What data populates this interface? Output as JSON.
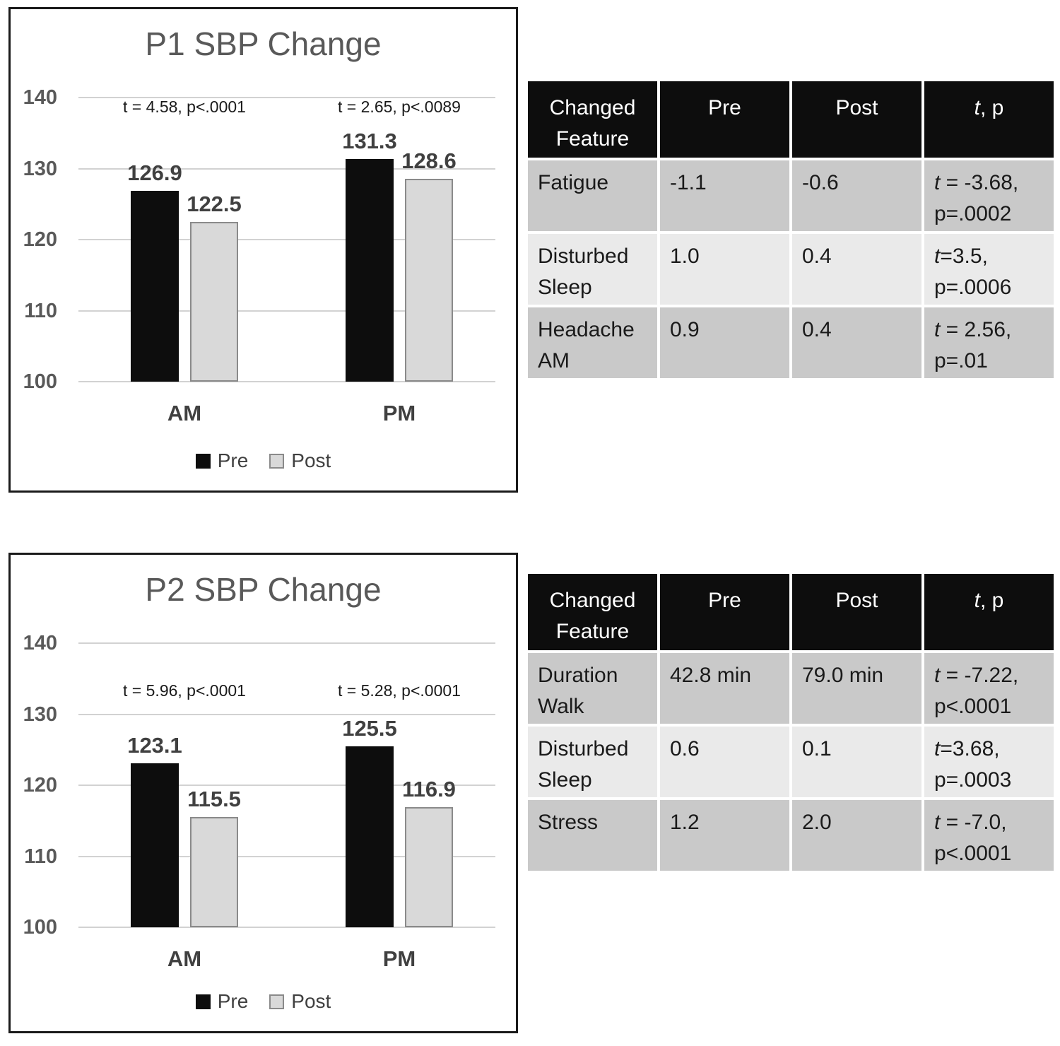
{
  "colors": {
    "pre_bar": "#0d0d0d",
    "post_bar": "#d9d9d9",
    "post_bar_border": "#8a8a8a",
    "gridline": "#d2d2d2",
    "title_text": "#595959",
    "label_text": "#404040",
    "table_header_bg": "#0d0d0d",
    "table_row_dark": "#c9c9c9",
    "table_row_light": "#eaeaea"
  },
  "chart_data": [
    {
      "type": "bar",
      "title": "P1 SBP Change",
      "categories": [
        "AM",
        "PM"
      ],
      "series": [
        {
          "name": "Pre",
          "values": [
            126.9,
            131.3
          ]
        },
        {
          "name": "Post",
          "values": [
            122.5,
            128.6
          ]
        }
      ],
      "annotations": [
        "t = 4.58, p<.0001",
        "t = 2.65, p<.0089"
      ],
      "annotation_value_y": 138.7,
      "ylim": [
        100,
        140
      ],
      "yticks": [
        140,
        130,
        120,
        110,
        100
      ],
      "grid": true,
      "legend_position": "bottom"
    },
    {
      "type": "bar",
      "title": "P2 SBP Change",
      "categories": [
        "AM",
        "PM"
      ],
      "series": [
        {
          "name": "Pre",
          "values": [
            123.1,
            125.5
          ]
        },
        {
          "name": "Post",
          "values": [
            115.5,
            116.9
          ]
        }
      ],
      "annotations": [
        "t = 5.96, p<.0001",
        "t = 5.28, p<.0001"
      ],
      "annotation_value_y": 133.3,
      "ylim": [
        100,
        140
      ],
      "yticks": [
        140,
        130,
        120,
        110,
        100
      ],
      "grid": true,
      "legend_position": "bottom"
    },
    {
      "type": "table",
      "headers": [
        "Changed Feature",
        "Pre",
        "Post",
        "t, p"
      ],
      "rows": [
        [
          "Fatigue",
          "-1.1",
          "-0.6",
          "t = -3.68,\np=.0002"
        ],
        [
          "Disturbed Sleep",
          "1.0",
          "0.4",
          "t=3.5,\np=.0006"
        ],
        [
          "Headache AM",
          "0.9",
          "0.4",
          "t = 2.56,\np=.01"
        ]
      ]
    },
    {
      "type": "table",
      "headers": [
        "Changed Feature",
        "Pre",
        "Post",
        "t, p"
      ],
      "rows": [
        [
          "Duration Walk",
          "42.8 min",
          "79.0 min",
          "t = -7.22,\np<.0001"
        ],
        [
          "Disturbed Sleep",
          "0.6",
          "0.1",
          "t=3.68,\np=.0003"
        ],
        [
          "Stress",
          "1.2",
          "2.0",
          "t = -7.0,\np<.0001"
        ]
      ]
    }
  ]
}
